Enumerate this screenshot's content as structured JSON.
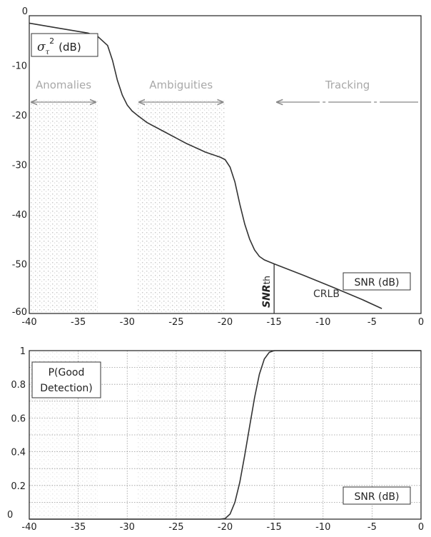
{
  "chart_data": [
    {
      "type": "line",
      "title": "",
      "xlabel": "SNR (dB)",
      "ylabel": "σ_τ² (dB)",
      "ylabel_parts": {
        "main": "σ",
        "sub": "τ",
        "sup": "2",
        "unit": "(dB)"
      },
      "xlim": [
        -40,
        0
      ],
      "ylim": [
        -60,
        0
      ],
      "xticks": [
        -40,
        -35,
        -30,
        -25,
        -20,
        -15,
        -10,
        -5,
        0
      ],
      "yticks": [
        0,
        -10,
        -20,
        -30,
        -40,
        -50,
        -60
      ],
      "grid": false,
      "regions": [
        {
          "label": "Anomalies",
          "x_start": -40,
          "x_end": -33,
          "shaded": true
        },
        {
          "label": "Ambiguities",
          "x_start": -29,
          "x_end": -20,
          "shaded": true
        },
        {
          "label": "Tracking",
          "x_start": -15,
          "x_end": 0,
          "shaded": false
        }
      ],
      "annotations": [
        {
          "text": "SNRth",
          "main": "SNR",
          "sub": "th",
          "x": -15,
          "y": -57
        },
        {
          "text": "CRLB",
          "x": -11,
          "y": -56
        }
      ],
      "threshold_x": -15,
      "series": [
        {
          "x": [
            -40,
            -37,
            -34,
            -33,
            -32,
            -31.5,
            -31,
            -30.5,
            -30,
            -29.5,
            -29,
            -28,
            -26,
            -24,
            -22,
            -20.5,
            -20,
            -19.5,
            -19,
            -18.5,
            -18,
            -17.5,
            -17,
            -16.5,
            -16,
            -15.5,
            -15,
            -12,
            -9,
            -6,
            -4
          ],
          "y": [
            -1.5,
            -2.5,
            -3.5,
            -4.2,
            -6,
            -9,
            -13,
            -16,
            -18,
            -19.2,
            -20,
            -21.5,
            -23.6,
            -25.7,
            -27.5,
            -28.5,
            -29,
            -30.5,
            -33.5,
            -38,
            -42,
            -45,
            -47.2,
            -48.5,
            -49.2,
            -49.6,
            -50,
            -52.3,
            -54.7,
            -57.2,
            -59
          ]
        }
      ]
    },
    {
      "type": "line",
      "title": "",
      "xlabel": "SNR (dB)",
      "ylabel": "P(Good Detection)",
      "ylabel_lines": [
        "P(Good",
        "Detection)"
      ],
      "xlim": [
        -40,
        0
      ],
      "ylim": [
        0,
        1
      ],
      "xticks": [
        -40,
        -35,
        -30,
        -25,
        -20,
        -15,
        -10,
        -5,
        0
      ],
      "yticks": [
        0,
        0.2,
        0.4,
        0.6,
        0.8,
        1
      ],
      "grid": true,
      "series": [
        {
          "x": [
            -40,
            -30,
            -22,
            -20.5,
            -20,
            -19.5,
            -19,
            -18.5,
            -18,
            -17.5,
            -17,
            -16.5,
            -16,
            -15.5,
            -15,
            -10,
            0
          ],
          "y": [
            0,
            0,
            0,
            0,
            0.004,
            0.03,
            0.1,
            0.22,
            0.38,
            0.55,
            0.72,
            0.86,
            0.95,
            0.99,
            1,
            1,
            1
          ]
        }
      ]
    }
  ]
}
